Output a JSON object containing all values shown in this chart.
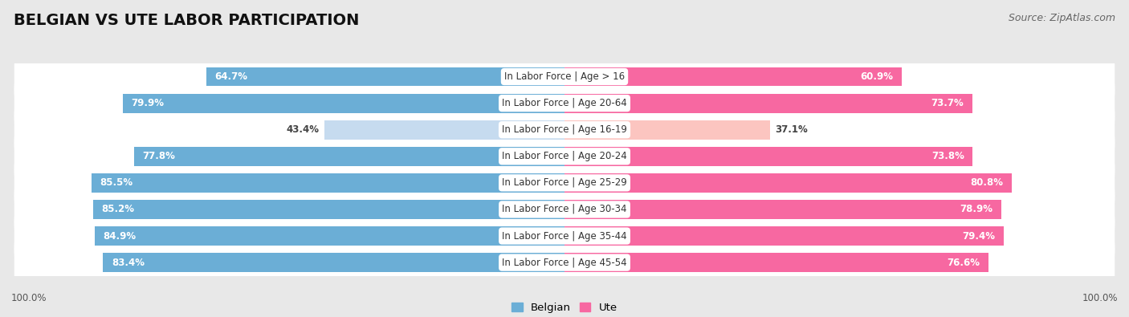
{
  "title": "BELGIAN VS UTE LABOR PARTICIPATION",
  "source": "Source: ZipAtlas.com",
  "categories": [
    "In Labor Force | Age > 16",
    "In Labor Force | Age 20-64",
    "In Labor Force | Age 16-19",
    "In Labor Force | Age 20-24",
    "In Labor Force | Age 25-29",
    "In Labor Force | Age 30-34",
    "In Labor Force | Age 35-44",
    "In Labor Force | Age 45-54"
  ],
  "belgian_values": [
    64.7,
    79.9,
    43.4,
    77.8,
    85.5,
    85.2,
    84.9,
    83.4
  ],
  "ute_values": [
    60.9,
    73.7,
    37.1,
    73.8,
    80.8,
    78.9,
    79.4,
    76.6
  ],
  "belgian_color_full": "#6baed6",
  "belgian_color_light": "#c6dbef",
  "ute_color_full": "#f768a1",
  "ute_color_light": "#fcc5c0",
  "bg_color": "#e8e8e8",
  "bar_bg_color": "#ffffff",
  "row_shadow_color": "#d0d0d0",
  "title_fontsize": 14,
  "source_fontsize": 9,
  "value_fontsize": 8.5,
  "cat_fontsize": 8.5,
  "axis_max": 100.0,
  "legend_labels": [
    "Belgian",
    "Ute"
  ],
  "threshold": 50.0
}
